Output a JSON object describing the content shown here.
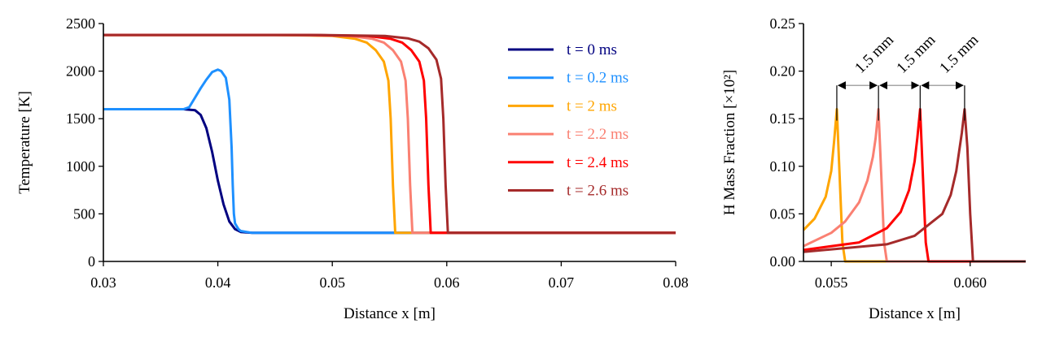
{
  "colors": {
    "t0": "#000080",
    "t0.2": "#1e90ff",
    "t2": "#ffa500",
    "t2.2": "#fa8072",
    "t2.4": "#ff0000",
    "t2.6": "#a52a2a"
  },
  "chart_data": [
    {
      "type": "line",
      "xlabel": "Distance x [m]",
      "ylabel": "Temperature [K]",
      "xlim": [
        0.03,
        0.08
      ],
      "ylim": [
        0,
        2500
      ],
      "xticks": [
        "0.03",
        "0.04",
        "0.05",
        "0.06",
        "0.07",
        "0.08"
      ],
      "yticks": [
        "0",
        "500",
        "1000",
        "1500",
        "2000",
        "2500"
      ],
      "grid": false,
      "legend": "upper-right",
      "series": [
        {
          "name": "t = 0 ms",
          "color": "#000080",
          "x": [
            0.03,
            0.037,
            0.038,
            0.0385,
            0.039,
            0.0395,
            0.04,
            0.0405,
            0.041,
            0.0415,
            0.042,
            0.043,
            0.08
          ],
          "y": [
            1600,
            1600,
            1590,
            1540,
            1400,
            1150,
            850,
            600,
            420,
            340,
            310,
            300,
            300
          ]
        },
        {
          "name": "t = 0.2 ms",
          "color": "#1e90ff",
          "x": [
            0.03,
            0.037,
            0.0375,
            0.038,
            0.0385,
            0.039,
            0.0395,
            0.04,
            0.0403,
            0.0407,
            0.041,
            0.0412,
            0.0413,
            0.0414,
            0.0415,
            0.0418,
            0.042,
            0.043,
            0.08
          ],
          "y": [
            1600,
            1600,
            1620,
            1720,
            1820,
            1910,
            1990,
            2015,
            2000,
            1930,
            1700,
            1200,
            800,
            500,
            400,
            340,
            320,
            300,
            300
          ]
        },
        {
          "name": "t = 2 ms",
          "color": "#ffa500",
          "x": [
            0.03,
            0.045,
            0.05,
            0.052,
            0.053,
            0.0538,
            0.0545,
            0.0549,
            0.0551,
            0.0553,
            0.0555,
            0.08
          ],
          "y": [
            2380,
            2380,
            2370,
            2340,
            2300,
            2220,
            2100,
            1900,
            1500,
            800,
            300,
            300
          ]
        },
        {
          "name": "t = 2.2 ms",
          "color": "#fa8072",
          "x": [
            0.03,
            0.046,
            0.0515,
            0.0535,
            0.0545,
            0.0553,
            0.056,
            0.0564,
            0.0566,
            0.0568,
            0.057,
            0.08
          ],
          "y": [
            2380,
            2380,
            2370,
            2340,
            2300,
            2220,
            2100,
            1900,
            1500,
            800,
            300,
            300
          ]
        },
        {
          "name": "t = 2.4 ms",
          "color": "#ff0000",
          "x": [
            0.03,
            0.048,
            0.0531,
            0.0551,
            0.0561,
            0.0569,
            0.0576,
            0.058,
            0.0582,
            0.0584,
            0.0586,
            0.08
          ],
          "y": [
            2380,
            2380,
            2370,
            2340,
            2300,
            2220,
            2100,
            1900,
            1500,
            800,
            300,
            300
          ]
        },
        {
          "name": "t = 2.6 ms",
          "color": "#a52a2a",
          "x": [
            0.03,
            0.049,
            0.0546,
            0.0566,
            0.0576,
            0.0584,
            0.0591,
            0.0595,
            0.0597,
            0.0599,
            0.0601,
            0.08
          ],
          "y": [
            2380,
            2380,
            2370,
            2345,
            2310,
            2240,
            2120,
            1920,
            1500,
            800,
            300,
            300
          ]
        }
      ]
    },
    {
      "type": "line",
      "xlabel": "Distance x [m]",
      "ylabel": "H Mass Fraction [×10²]",
      "xlim": [
        0.054,
        0.062
      ],
      "ylim": [
        0,
        0.25
      ],
      "xticks": [
        "0.055",
        "0.060"
      ],
      "yticks": [
        "0.00",
        "0.05",
        "0.10",
        "0.15",
        "0.20",
        "0.25"
      ],
      "grid": false,
      "series": [
        {
          "color": "#ffa500",
          "x": [
            0.054,
            0.0544,
            0.0548,
            0.055,
            0.0551,
            0.0552,
            0.0553,
            0.0554,
            0.0555,
            0.062
          ],
          "y": [
            0.033,
            0.045,
            0.068,
            0.095,
            0.125,
            0.16,
            0.09,
            0.02,
            0,
            0
          ]
        },
        {
          "color": "#fa8072",
          "x": [
            0.054,
            0.055,
            0.0555,
            0.056,
            0.0563,
            0.0565,
            0.0566,
            0.0567,
            0.0568,
            0.0569,
            0.057,
            0.062
          ],
          "y": [
            0.016,
            0.03,
            0.042,
            0.062,
            0.085,
            0.11,
            0.13,
            0.16,
            0.09,
            0.02,
            0,
            0
          ]
        },
        {
          "color": "#ff0000",
          "x": [
            0.054,
            0.056,
            0.057,
            0.0575,
            0.0578,
            0.058,
            0.0581,
            0.0582,
            0.0583,
            0.0584,
            0.0585,
            0.062
          ],
          "y": [
            0.012,
            0.02,
            0.035,
            0.052,
            0.075,
            0.105,
            0.13,
            0.16,
            0.09,
            0.02,
            0,
            0
          ]
        },
        {
          "color": "#a52a2a",
          "x": [
            0.054,
            0.057,
            0.058,
            0.059,
            0.0593,
            0.0595,
            0.0596,
            0.0597,
            0.0598,
            0.0599,
            0.06,
            0.0601,
            0.062
          ],
          "y": [
            0.01,
            0.018,
            0.027,
            0.05,
            0.07,
            0.095,
            0.115,
            0.135,
            0.16,
            0.12,
            0.05,
            0,
            0
          ]
        }
      ],
      "annotations": [
        {
          "label": "1.5 mm",
          "from": 0.0552,
          "to": 0.0567
        },
        {
          "label": "1.5 mm",
          "from": 0.0567,
          "to": 0.0582
        },
        {
          "label": "1.5 mm",
          "from": 0.0582,
          "to": 0.0598
        }
      ]
    }
  ]
}
